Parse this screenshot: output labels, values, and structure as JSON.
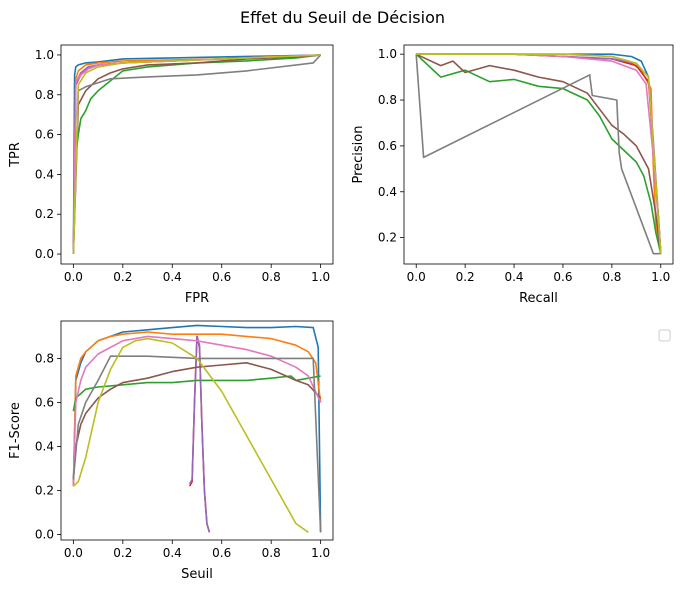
{
  "title": "Effet du Seuil de Décision",
  "colors": [
    "#1f77b4",
    "#ff7f0e",
    "#2ca02c",
    "#d62728",
    "#9467bd",
    "#8c564b",
    "#e377c2",
    "#7f7f7f",
    "#bcbd22"
  ],
  "chart_data": [
    {
      "type": "line",
      "xlabel": "FPR",
      "ylabel": "TPR",
      "xlim": [
        -0.05,
        1.05
      ],
      "ylim": [
        -0.05,
        1.05
      ],
      "xticks": [
        "0.0",
        "0.2",
        "0.4",
        "0.6",
        "0.8",
        "1.0"
      ],
      "yticks": [
        "0.0",
        "0.2",
        "0.4",
        "0.6",
        "0.8",
        "1.0"
      ],
      "series": [
        {
          "color": "#1f77b4",
          "x": [
            0,
            0.005,
            0.01,
            0.02,
            0.05,
            0.1,
            0.2,
            0.4,
            0.6,
            0.8,
            1.0
          ],
          "y": [
            0,
            0.9,
            0.94,
            0.95,
            0.96,
            0.965,
            0.98,
            0.985,
            0.99,
            0.995,
            1.0
          ]
        },
        {
          "color": "#ff7f0e",
          "x": [
            0,
            0.01,
            0.02,
            0.05,
            0.1,
            0.2,
            0.4,
            0.6,
            0.8,
            1.0
          ],
          "y": [
            0,
            0.88,
            0.92,
            0.95,
            0.96,
            0.97,
            0.975,
            0.98,
            0.99,
            1.0
          ]
        },
        {
          "color": "#2ca02c",
          "x": [
            0,
            0.01,
            0.02,
            0.03,
            0.05,
            0.07,
            0.1,
            0.15,
            0.2,
            0.3,
            0.5,
            0.7,
            0.9,
            1.0
          ],
          "y": [
            0,
            0.5,
            0.6,
            0.68,
            0.72,
            0.78,
            0.82,
            0.87,
            0.92,
            0.94,
            0.96,
            0.97,
            0.985,
            1.0
          ]
        },
        {
          "color": "#d62728",
          "x": [
            0,
            0.01,
            0.03,
            0.06,
            0.1,
            0.2,
            0.4,
            0.6,
            0.8,
            1.0
          ],
          "y": [
            0,
            0.85,
            0.9,
            0.93,
            0.95,
            0.96,
            0.97,
            0.98,
            0.99,
            1.0
          ]
        },
        {
          "color": "#9467bd",
          "x": [
            0,
            0.01,
            0.03,
            0.06,
            0.1,
            0.2,
            0.4,
            0.6,
            0.8,
            1.0
          ],
          "y": [
            0,
            0.86,
            0.91,
            0.94,
            0.95,
            0.96,
            0.97,
            0.98,
            0.99,
            1.0
          ]
        },
        {
          "color": "#8c564b",
          "x": [
            0,
            0.02,
            0.05,
            0.1,
            0.15,
            0.2,
            0.3,
            0.5,
            0.7,
            0.9,
            1.0
          ],
          "y": [
            0,
            0.75,
            0.82,
            0.88,
            0.91,
            0.93,
            0.95,
            0.96,
            0.98,
            0.99,
            1.0
          ]
        },
        {
          "color": "#e377c2",
          "x": [
            0,
            0.01,
            0.03,
            0.06,
            0.1,
            0.2,
            0.4,
            0.6,
            0.8,
            1.0
          ],
          "y": [
            0,
            0.86,
            0.9,
            0.93,
            0.95,
            0.96,
            0.97,
            0.98,
            0.99,
            1.0
          ]
        },
        {
          "color": "#7f7f7f",
          "x": [
            0,
            0.02,
            0.05,
            0.15,
            0.3,
            0.5,
            0.7,
            0.97,
            1.0
          ],
          "y": [
            0,
            0.82,
            0.84,
            0.88,
            0.89,
            0.9,
            0.92,
            0.96,
            1.0
          ]
        },
        {
          "color": "#bcbd22",
          "x": [
            0,
            0.02,
            0.05,
            0.1,
            0.2,
            0.4,
            0.6,
            0.8,
            1.0
          ],
          "y": [
            0,
            0.85,
            0.91,
            0.94,
            0.96,
            0.97,
            0.98,
            0.99,
            1.0
          ]
        }
      ]
    },
    {
      "type": "line",
      "xlabel": "Recall",
      "ylabel": "Precision",
      "xlim": [
        -0.05,
        1.05
      ],
      "ylim": [
        0.085,
        1.04
      ],
      "xticks": [
        "0.0",
        "0.2",
        "0.4",
        "0.6",
        "0.8",
        "1.0"
      ],
      "yticks": [
        "0.2",
        "0.4",
        "0.6",
        "0.8",
        "1.0"
      ],
      "series": [
        {
          "color": "#1f77b4",
          "x": [
            0,
            0.2,
            0.4,
            0.6,
            0.8,
            0.88,
            0.92,
            0.95,
            0.97,
            0.98,
            0.99,
            1.0
          ],
          "y": [
            1.0,
            1.0,
            1.0,
            1.0,
            1.0,
            0.99,
            0.97,
            0.9,
            0.6,
            0.42,
            0.3,
            0.13
          ]
        },
        {
          "color": "#ff7f0e",
          "x": [
            0,
            0.2,
            0.4,
            0.6,
            0.8,
            0.87,
            0.92,
            0.96,
            0.97,
            0.98,
            1.0
          ],
          "y": [
            1.0,
            1.0,
            1.0,
            1.0,
            0.99,
            0.97,
            0.93,
            0.85,
            0.5,
            0.25,
            0.13
          ]
        },
        {
          "color": "#2ca02c",
          "x": [
            0,
            0.08,
            0.1,
            0.2,
            0.3,
            0.4,
            0.5,
            0.6,
            0.7,
            0.75,
            0.8,
            0.85,
            0.9,
            0.93,
            0.96,
            0.98,
            1.0
          ],
          "y": [
            1.0,
            0.92,
            0.9,
            0.93,
            0.88,
            0.89,
            0.86,
            0.85,
            0.8,
            0.73,
            0.63,
            0.58,
            0.53,
            0.47,
            0.35,
            0.22,
            0.13
          ]
        },
        {
          "color": "#d62728",
          "x": [
            0,
            0.2,
            0.4,
            0.6,
            0.8,
            0.9,
            0.95,
            0.97,
            1.0
          ],
          "y": [
            1.0,
            1.0,
            1.0,
            0.99,
            0.98,
            0.95,
            0.88,
            0.6,
            0.13
          ]
        },
        {
          "color": "#9467bd",
          "x": [
            0,
            0.2,
            0.4,
            0.6,
            0.8,
            0.9,
            0.95,
            0.97,
            1.0
          ],
          "y": [
            1.0,
            1.0,
            1.0,
            0.99,
            0.98,
            0.96,
            0.9,
            0.62,
            0.13
          ]
        },
        {
          "color": "#8c564b",
          "x": [
            0,
            0.1,
            0.15,
            0.2,
            0.3,
            0.4,
            0.5,
            0.6,
            0.7,
            0.75,
            0.8,
            0.85,
            0.9,
            0.95,
            0.98,
            1.0
          ],
          "y": [
            1.0,
            0.95,
            0.97,
            0.92,
            0.95,
            0.93,
            0.9,
            0.88,
            0.83,
            0.76,
            0.69,
            0.65,
            0.6,
            0.5,
            0.3,
            0.13
          ]
        },
        {
          "color": "#e377c2",
          "x": [
            0,
            0.2,
            0.4,
            0.6,
            0.8,
            0.9,
            0.94,
            0.97,
            1.0
          ],
          "y": [
            1.0,
            1.0,
            1.0,
            0.99,
            0.97,
            0.93,
            0.87,
            0.55,
            0.13
          ]
        },
        {
          "color": "#7f7f7f",
          "x": [
            0,
            0.03,
            0.71,
            0.71,
            0.72,
            0.82,
            0.83,
            0.84,
            0.97,
            1.0
          ],
          "y": [
            1.0,
            0.55,
            0.91,
            0.9,
            0.82,
            0.8,
            0.57,
            0.5,
            0.13,
            0.13
          ]
        },
        {
          "color": "#bcbd22",
          "x": [
            0,
            0.2,
            0.4,
            0.6,
            0.8,
            0.9,
            0.95,
            0.97,
            1.0
          ],
          "y": [
            1.0,
            1.0,
            1.0,
            1.0,
            0.99,
            0.96,
            0.9,
            0.6,
            0.13
          ]
        }
      ]
    },
    {
      "type": "line",
      "xlabel": "Seuil",
      "ylabel": "F1-Score",
      "xlim": [
        -0.05,
        1.05
      ],
      "ylim": [
        -0.025,
        0.97
      ],
      "xticks": [
        "0.0",
        "0.2",
        "0.4",
        "0.6",
        "0.8",
        "1.0"
      ],
      "yticks": [
        "0.0",
        "0.2",
        "0.4",
        "0.6",
        "0.8"
      ],
      "series": [
        {
          "color": "#1f77b4",
          "x": [
            0,
            0.01,
            0.03,
            0.05,
            0.1,
            0.2,
            0.3,
            0.4,
            0.5,
            0.6,
            0.7,
            0.8,
            0.9,
            0.97,
            0.99,
            1.0
          ],
          "y": [
            0.22,
            0.7,
            0.78,
            0.83,
            0.88,
            0.92,
            0.93,
            0.94,
            0.95,
            0.945,
            0.94,
            0.94,
            0.945,
            0.94,
            0.85,
            0.01
          ]
        },
        {
          "color": "#ff7f0e",
          "x": [
            0,
            0.01,
            0.03,
            0.05,
            0.1,
            0.15,
            0.2,
            0.3,
            0.4,
            0.5,
            0.6,
            0.7,
            0.8,
            0.9,
            0.95,
            0.98,
            1.0
          ],
          "y": [
            0.22,
            0.72,
            0.8,
            0.83,
            0.88,
            0.9,
            0.91,
            0.92,
            0.91,
            0.91,
            0.91,
            0.9,
            0.89,
            0.86,
            0.83,
            0.78,
            0.6
          ]
        },
        {
          "color": "#2ca02c",
          "x": [
            0,
            0.01,
            0.03,
            0.05,
            0.1,
            0.2,
            0.3,
            0.4,
            0.5,
            0.6,
            0.7,
            0.8,
            0.88,
            0.9,
            0.95,
            1.0
          ],
          "y": [
            0.56,
            0.62,
            0.64,
            0.66,
            0.67,
            0.68,
            0.69,
            0.69,
            0.7,
            0.7,
            0.7,
            0.71,
            0.72,
            0.7,
            0.71,
            0.72
          ]
        },
        {
          "color": "#d62728",
          "x": [
            0.47,
            0.48,
            0.49,
            0.5,
            0.51,
            0.52,
            0.53,
            0.54,
            0.55
          ],
          "y": [
            0.22,
            0.24,
            0.6,
            0.9,
            0.85,
            0.5,
            0.2,
            0.05,
            0.01
          ]
        },
        {
          "color": "#9467bd",
          "x": [
            0.47,
            0.48,
            0.49,
            0.5,
            0.51,
            0.52,
            0.53,
            0.54,
            0.55
          ],
          "y": [
            0.23,
            0.25,
            0.6,
            0.9,
            0.86,
            0.5,
            0.2,
            0.05,
            0.01
          ]
        },
        {
          "color": "#8c564b",
          "x": [
            0,
            0.01,
            0.03,
            0.05,
            0.1,
            0.15,
            0.2,
            0.3,
            0.4,
            0.5,
            0.6,
            0.7,
            0.8,
            0.9,
            0.95,
            1.0
          ],
          "y": [
            0.25,
            0.4,
            0.5,
            0.55,
            0.62,
            0.66,
            0.69,
            0.71,
            0.74,
            0.76,
            0.77,
            0.78,
            0.75,
            0.7,
            0.68,
            0.62
          ]
        },
        {
          "color": "#e377c2",
          "x": [
            0,
            0.01,
            0.03,
            0.05,
            0.1,
            0.2,
            0.3,
            0.4,
            0.5,
            0.6,
            0.7,
            0.8,
            0.9,
            0.95,
            1.0
          ],
          "y": [
            0.22,
            0.6,
            0.7,
            0.76,
            0.82,
            0.88,
            0.9,
            0.89,
            0.88,
            0.86,
            0.84,
            0.81,
            0.76,
            0.72,
            0.6
          ]
        },
        {
          "color": "#7f7f7f",
          "x": [
            0,
            0.02,
            0.05,
            0.1,
            0.15,
            0.3,
            0.5,
            0.7,
            0.97,
            1.0
          ],
          "y": [
            0.25,
            0.5,
            0.6,
            0.7,
            0.81,
            0.81,
            0.8,
            0.8,
            0.8,
            0.01
          ]
        },
        {
          "color": "#bcbd22",
          "x": [
            0,
            0.02,
            0.05,
            0.1,
            0.15,
            0.2,
            0.25,
            0.3,
            0.4,
            0.5,
            0.6,
            0.7,
            0.8,
            0.9,
            0.95
          ],
          "y": [
            0.22,
            0.24,
            0.35,
            0.6,
            0.75,
            0.85,
            0.88,
            0.89,
            0.87,
            0.8,
            0.65,
            0.45,
            0.25,
            0.05,
            0.01
          ]
        }
      ]
    }
  ]
}
